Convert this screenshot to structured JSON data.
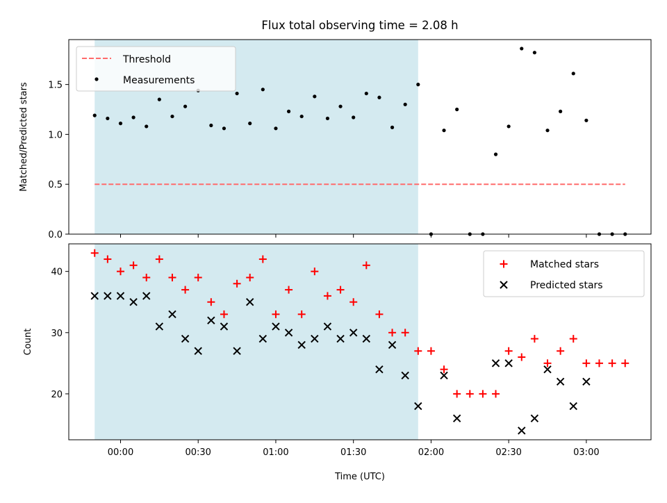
{
  "chart_data": [
    {
      "type": "scatter",
      "title": "Flux total observing time = 2.08 h",
      "xlabel": "",
      "ylabel": "Matched/Predicted stars",
      "ylim": [
        0,
        1.95
      ],
      "yticks": [
        "0.0",
        "0.5",
        "1.0",
        "1.5"
      ],
      "shaded_span": {
        "start": "-00:10",
        "end": "01:55",
        "color": "#d4eaf0"
      },
      "threshold": {
        "name": "Threshold",
        "value": 0.5,
        "x_start": -10,
        "x_end": 195,
        "color": "#ff6b6b"
      },
      "legend": {
        "position": "top-left",
        "entries": [
          "Threshold",
          "Measurements"
        ]
      },
      "series": [
        {
          "name": "Measurements",
          "x": [
            -10,
            -5,
            0,
            5,
            10,
            15,
            20,
            25,
            30,
            35,
            40,
            45,
            50,
            55,
            60,
            65,
            70,
            75,
            80,
            85,
            90,
            95,
            100,
            105,
            110,
            115,
            120,
            125,
            130,
            135,
            140,
            145,
            150,
            155,
            160,
            165,
            170,
            175,
            180,
            185,
            190,
            195
          ],
          "values": [
            1.19,
            1.16,
            1.11,
            1.17,
            1.08,
            1.35,
            1.18,
            1.28,
            1.44,
            1.09,
            1.06,
            1.41,
            1.11,
            1.45,
            1.06,
            1.23,
            1.18,
            1.38,
            1.16,
            1.28,
            1.17,
            1.41,
            1.37,
            1.07,
            1.3,
            1.5,
            0.0,
            1.04,
            1.25,
            0.0,
            0.0,
            0.8,
            1.08,
            1.86,
            1.82,
            1.04,
            1.23,
            1.61,
            1.14,
            0.0,
            0.0,
            0.0
          ]
        }
      ]
    },
    {
      "type": "scatter",
      "xlabel": "Time (UTC)",
      "ylabel": "Count",
      "ylim": [
        12.5,
        44.5
      ],
      "yticks": [
        "20",
        "30",
        "40"
      ],
      "xticks": [
        "00:00",
        "00:30",
        "01:00",
        "01:30",
        "02:00",
        "02:30",
        "03:00"
      ],
      "xlim_minutes": [
        -20,
        205
      ],
      "legend": {
        "position": "top-right",
        "entries": [
          "Matched stars",
          "Predicted stars"
        ]
      },
      "series": [
        {
          "name": "Matched stars",
          "color": "#ff0000",
          "x": [
            -10,
            -5,
            0,
            5,
            10,
            15,
            20,
            25,
            30,
            35,
            40,
            45,
            50,
            55,
            60,
            65,
            70,
            75,
            80,
            85,
            90,
            95,
            100,
            105,
            110,
            115,
            120,
            125,
            130,
            135,
            140,
            145,
            150,
            155,
            160,
            165,
            170,
            175,
            180,
            185,
            190,
            195
          ],
          "values": [
            43,
            42,
            40,
            41,
            39,
            42,
            39,
            37,
            39,
            35,
            33,
            38,
            39,
            42,
            33,
            37,
            33,
            40,
            36,
            37,
            35,
            41,
            33,
            30,
            30,
            27,
            27,
            24,
            20,
            20,
            20,
            20,
            27,
            26,
            29,
            25,
            27,
            29,
            25,
            25,
            25,
            25
          ]
        },
        {
          "name": "Predicted stars",
          "color": "#000000",
          "x": [
            -10,
            -5,
            0,
            5,
            10,
            15,
            20,
            25,
            30,
            35,
            40,
            45,
            50,
            55,
            60,
            65,
            70,
            75,
            80,
            85,
            90,
            95,
            100,
            105,
            110,
            115,
            125,
            130,
            145,
            150,
            155,
            160,
            165,
            170,
            175,
            180
          ],
          "values": [
            36,
            36,
            36,
            35,
            36,
            31,
            33,
            29,
            27,
            32,
            31,
            27,
            35,
            29,
            31,
            30,
            28,
            29,
            31,
            29,
            30,
            29,
            24,
            28,
            23,
            18,
            23,
            16,
            25,
            25,
            14,
            16,
            24,
            22,
            18,
            22
          ]
        }
      ]
    }
  ]
}
